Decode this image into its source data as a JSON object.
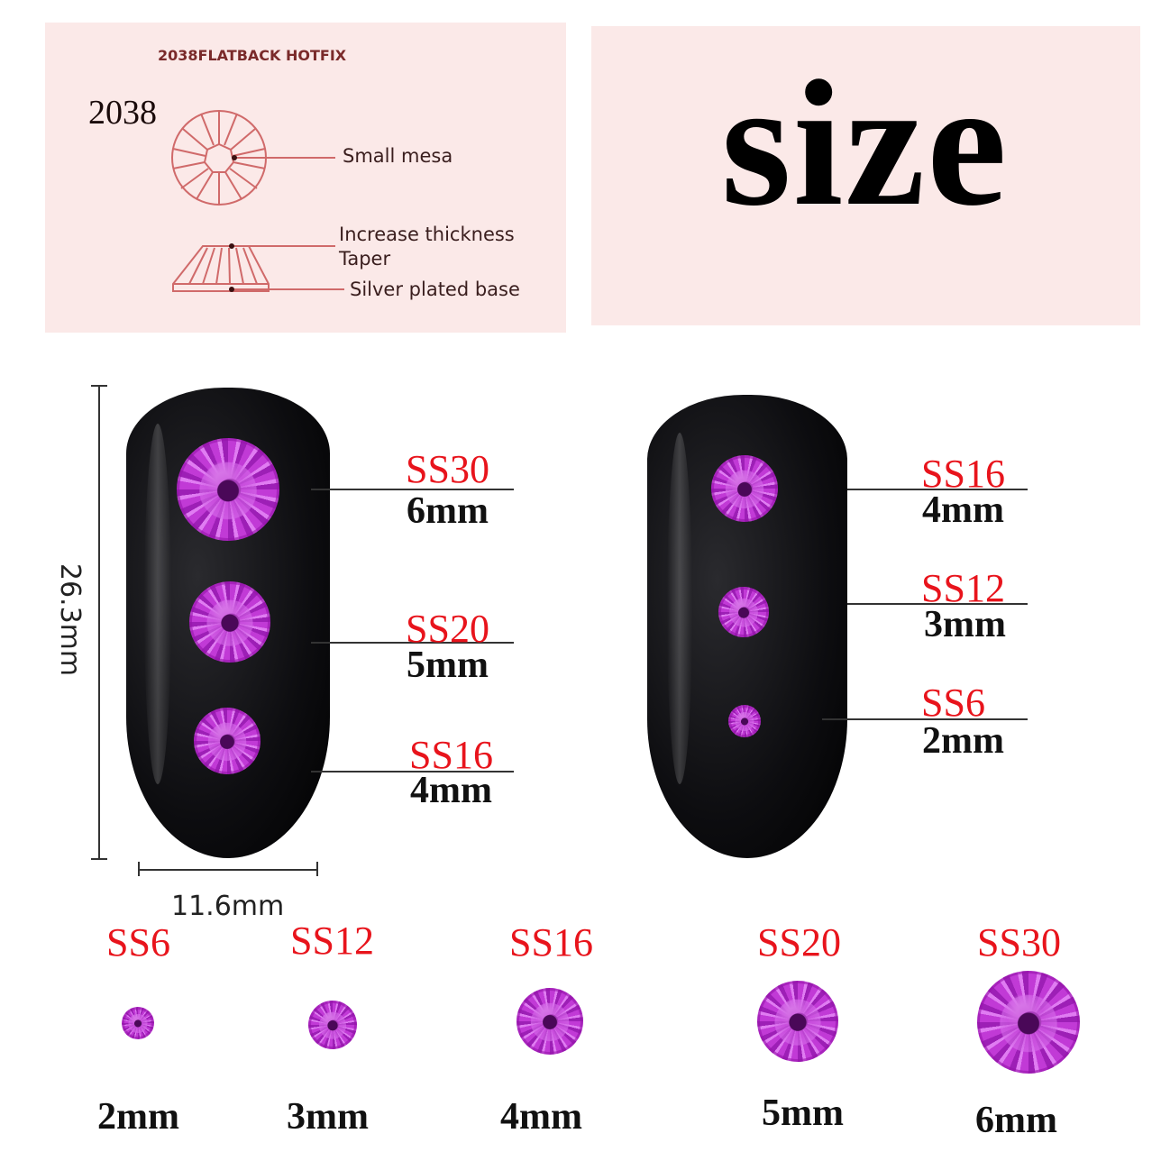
{
  "diagram_panel": {
    "heading": "2038FLATBACK HOTFIX",
    "model": "2038",
    "labels": {
      "small_mesa": "Small mesa",
      "increase_thickness": "Increase thickness",
      "taper": "Taper",
      "silver_base": "Silver plated base"
    },
    "line_color": "#d06a6a"
  },
  "title_panel": {
    "title": "size"
  },
  "dimensions": {
    "height": "26.3mm",
    "width": "11.6mm"
  },
  "left_nail": [
    {
      "code": "SS30",
      "size": "6mm"
    },
    {
      "code": "SS20",
      "size": "5mm"
    },
    {
      "code": "SS16",
      "size": "4mm"
    }
  ],
  "right_nail": [
    {
      "code": "SS16",
      "size": "4mm"
    },
    {
      "code": "SS12",
      "size": "3mm"
    },
    {
      "code": "SS6",
      "size": "2mm"
    }
  ],
  "size_row": [
    {
      "code": "SS6",
      "size": "2mm"
    },
    {
      "code": "SS12",
      "size": "3mm"
    },
    {
      "code": "SS16",
      "size": "4mm"
    },
    {
      "code": "SS20",
      "size": "5mm"
    },
    {
      "code": "SS30",
      "size": "6mm"
    }
  ],
  "colors": {
    "stone": "#c040d8",
    "code_text": "#e8141c",
    "panel_bg": "#fbe9e8",
    "nail": "#0d0d10"
  }
}
